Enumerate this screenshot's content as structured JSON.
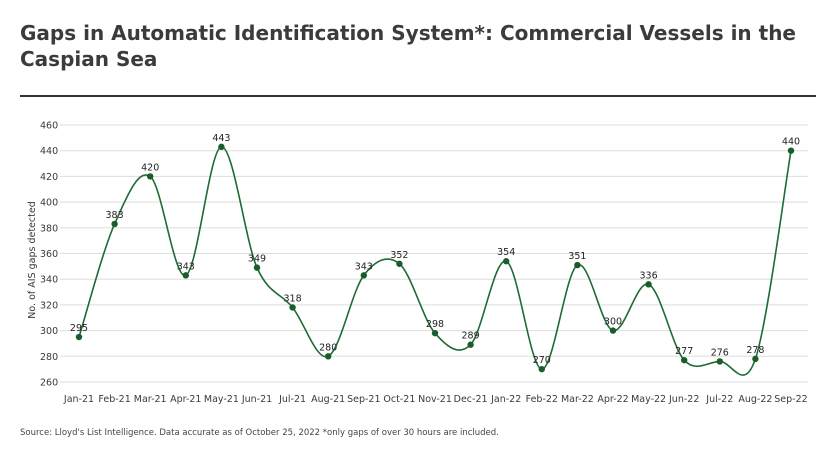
{
  "title": "Gaps in Automatic Identification System*: Commercial Vessels in the Caspian Sea",
  "source_note": "Source: Lloyd's List Intelligence. Data accurate as of October 25, 2022  *only gaps of over 30 hours are included.",
  "colors": {
    "line": "#1e6b33",
    "marker": "#1a5c2b",
    "grid": "#dddddd",
    "text": "#3a3a3a"
  },
  "chart_data": {
    "type": "line",
    "title": "Gaps in Automatic Identification System*: Commercial Vessels in the Caspian Sea",
    "xlabel": "",
    "ylabel": "No. of AIS gaps detected",
    "ylim": [
      260,
      460
    ],
    "yticks": [
      260,
      280,
      300,
      320,
      340,
      360,
      380,
      400,
      420,
      440,
      460
    ],
    "grid": true,
    "smooth": true,
    "categories": [
      "Jan-21",
      "Feb-21",
      "Mar-21",
      "Apr-21",
      "May-21",
      "Jun-21",
      "Jul-21",
      "Aug-21",
      "Sep-21",
      "Oct-21",
      "Nov-21",
      "Dec-21",
      "Jan-22",
      "Feb-22",
      "Mar-22",
      "Apr-22",
      "May-22",
      "Jun-22",
      "Jul-22",
      "Aug-22",
      "Sep-22"
    ],
    "values": [
      295,
      383,
      420,
      343,
      443,
      349,
      318,
      280,
      343,
      352,
      298,
      289,
      354,
      270,
      351,
      300,
      336,
      277,
      276,
      278,
      440
    ]
  }
}
